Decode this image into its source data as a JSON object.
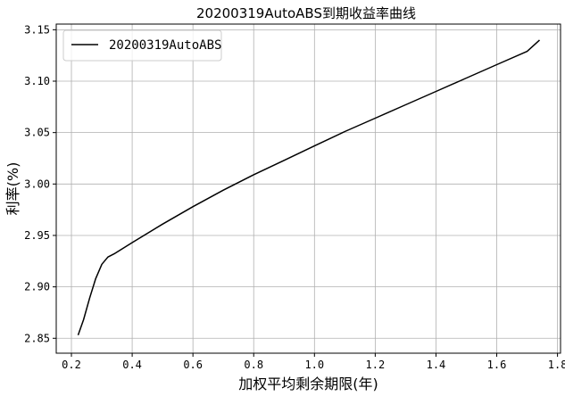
{
  "chart_data": {
    "type": "line",
    "title": "20200319AutoABS到期收益率曲线",
    "xlabel": "加权平均剩余期限(年)",
    "ylabel": "利率(%)",
    "xlim": [
      0.15,
      1.81
    ],
    "ylim": [
      2.8355,
      3.1555
    ],
    "grid": true,
    "legend_position": "top-left",
    "x_ticks": [
      0.2,
      0.4,
      0.6,
      0.8,
      1.0,
      1.2,
      1.4,
      1.6,
      1.8
    ],
    "x_tick_labels": [
      "0.2",
      "0.4",
      "0.6",
      "0.8",
      "1.0",
      "1.2",
      "1.4",
      "1.6",
      "1.8"
    ],
    "y_ticks": [
      2.85,
      2.9,
      2.95,
      3.0,
      3.05,
      3.1,
      3.15
    ],
    "y_tick_labels": [
      "2.85",
      "2.90",
      "2.95",
      "3.00",
      "3.05",
      "3.10",
      "3.15"
    ],
    "series": [
      {
        "name": "20200319AutoABS",
        "color": "#000000",
        "x": [
          0.222,
          0.24,
          0.26,
          0.28,
          0.3,
          0.32,
          0.34,
          0.4,
          0.5,
          0.6,
          0.7,
          0.8,
          0.9,
          1.0,
          1.1,
          1.2,
          1.3,
          1.4,
          1.5,
          1.6,
          1.7,
          1.741
        ],
        "y": [
          2.853,
          2.868,
          2.889,
          2.908,
          2.922,
          2.929,
          2.932,
          2.943,
          2.961,
          2.978,
          2.994,
          3.009,
          3.023,
          3.037,
          3.051,
          3.064,
          3.077,
          3.09,
          3.103,
          3.116,
          3.129,
          3.14
        ]
      }
    ]
  }
}
